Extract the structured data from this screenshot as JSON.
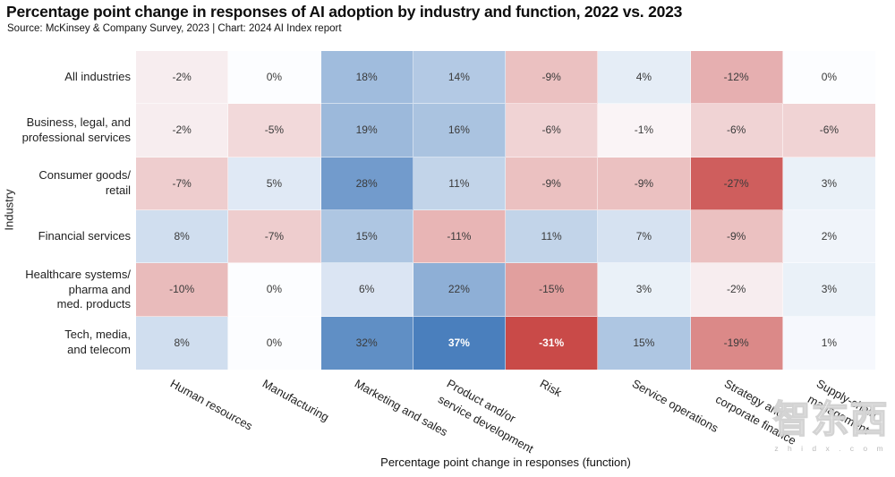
{
  "header": {
    "title": "Percentage point change in responses of AI adoption by industry and function, 2022 vs. 2023",
    "source": "Source: McKinsey & Company Survey, 2023 | Chart: 2024 AI Index report"
  },
  "chart_data": {
    "type": "heatmap",
    "title": "Percentage point change in responses of AI adoption by industry and function, 2022 vs. 2023",
    "xlabel": "Percentage point change in responses (function)",
    "ylabel": "Industry",
    "columns": [
      "Human resources",
      "Manufacturing",
      "Marketing and sales",
      "Product and/or\nservice development",
      "Risk",
      "Service operations",
      "Strategy and\ncorporate finance",
      "Supply-chain\nmanagement"
    ],
    "rows": [
      "All industries",
      "Business, legal, and\nprofessional services",
      "Consumer goods/\nretail",
      "Financial services",
      "Healthcare systems/\npharma and\nmed. products",
      "Tech, media,\nand telecom"
    ],
    "values": [
      [
        -2,
        0,
        18,
        14,
        -9,
        4,
        -12,
        0
      ],
      [
        -2,
        -5,
        19,
        16,
        -6,
        -1,
        -6,
        -6
      ],
      [
        -7,
        5,
        28,
        11,
        -9,
        -9,
        -27,
        3
      ],
      [
        8,
        -7,
        15,
        -11,
        11,
        7,
        -9,
        2
      ],
      [
        -10,
        0,
        6,
        22,
        -15,
        3,
        -2,
        3
      ],
      [
        8,
        0,
        32,
        37,
        -31,
        15,
        -19,
        1
      ]
    ],
    "value_suffix": "%",
    "value_range": [
      -31,
      37
    ],
    "legend_position": "none",
    "grid": false,
    "colormap": {
      "positive_max_color": "#4a7fbd",
      "negative_max_color": "#c94a48",
      "zero_color": "#fcfdff",
      "positive_max_value": 37,
      "negative_max_value": -31
    }
  },
  "watermark": {
    "text": "智东西",
    "subtext": "z h i d x . c o m"
  }
}
